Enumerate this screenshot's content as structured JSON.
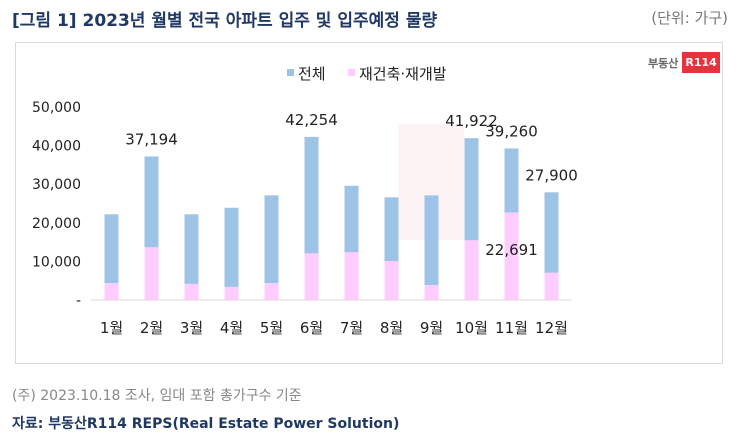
{
  "title": "[그림 1] 2023년 월별 전국 아파트 입주 및 입주예정 물량",
  "unit": "(단위: 가구)",
  "logo": {
    "text": "부동산",
    "mark": "R114"
  },
  "note": "(주) 2023.10.18 조사, 임대 포함 총가구수 기준",
  "source": "자료: 부동산R114 REPS(Real Estate Power Solution)",
  "chart_data": {
    "type": "bar",
    "categories": [
      "1월",
      "2월",
      "3월",
      "4월",
      "5월",
      "6월",
      "7월",
      "8월",
      "9월",
      "10월",
      "11월",
      "12월"
    ],
    "series": [
      {
        "name": "전체",
        "color": "#9dc3e6",
        "values": [
          22200,
          37194,
          22200,
          23900,
          27100,
          42254,
          29600,
          26600,
          27100,
          41922,
          39260,
          27900
        ]
      },
      {
        "name": "재건축·재개발",
        "color": "#ffccff",
        "values": [
          4400,
          13700,
          4200,
          3400,
          4400,
          12100,
          12400,
          10100,
          3900,
          15500,
          22691,
          7100
        ]
      }
    ],
    "data_labels": [
      {
        "category": "2월",
        "text": "37,194"
      },
      {
        "category": "6월",
        "text": "42,254"
      },
      {
        "category": "10월",
        "text": "41,922"
      },
      {
        "category": "11월",
        "text": "39,260"
      },
      {
        "category": "11월",
        "text": "22,691",
        "series": "재건축·재개발"
      },
      {
        "category": "12월",
        "text": "27,900"
      }
    ],
    "yticks": [
      "-",
      "10,000",
      "20,000",
      "30,000",
      "40,000",
      "50,000"
    ],
    "ylim": [
      0,
      50000
    ],
    "legend": "top-center",
    "grid": false
  }
}
